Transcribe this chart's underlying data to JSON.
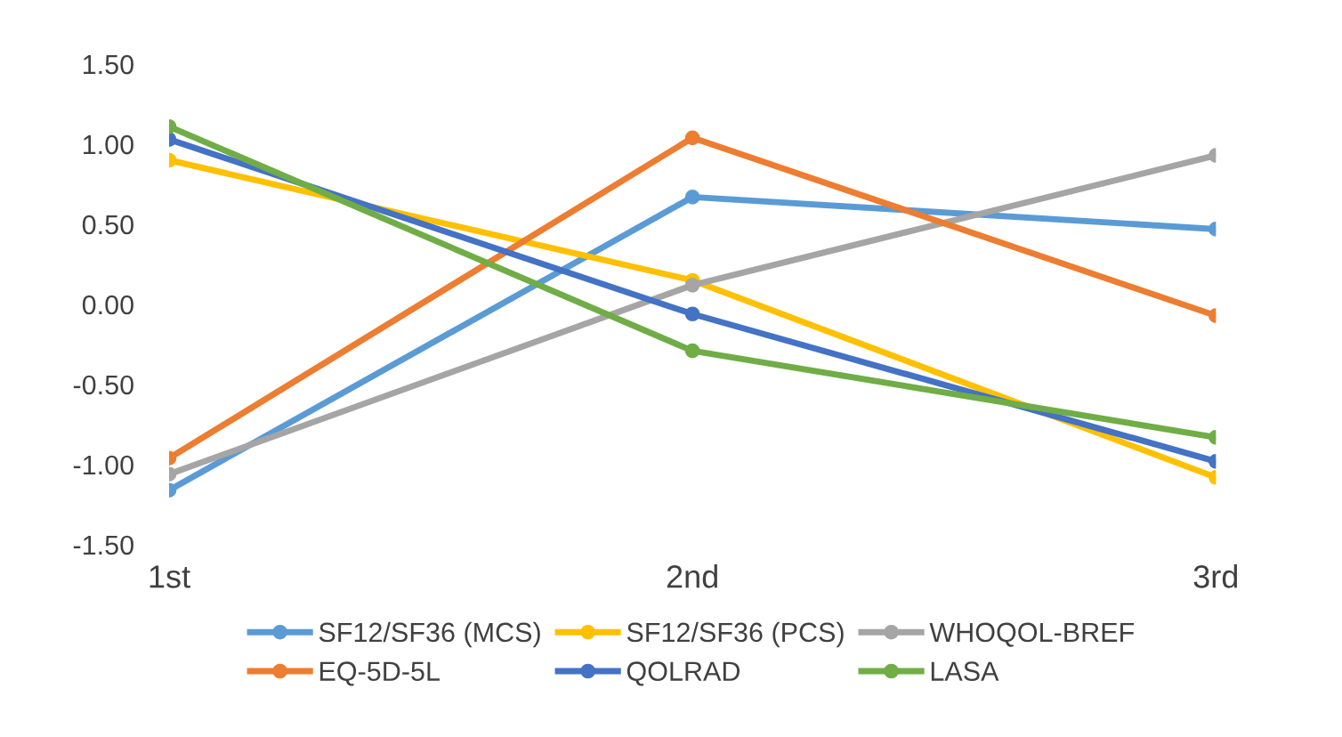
{
  "chart_data": {
    "type": "line",
    "categories": [
      "1st",
      "2nd",
      "3rd"
    ],
    "ylim": [
      -1.5,
      1.5
    ],
    "yticks": [
      {
        "value": -1.5,
        "label": "-1.50"
      },
      {
        "value": -1.0,
        "label": "-1.00"
      },
      {
        "value": -0.5,
        "label": "-0.50"
      },
      {
        "value": 0,
        "label": "0.00"
      },
      {
        "value": 0.5,
        "label": "0.50"
      },
      {
        "value": 1.0,
        "label": "1.00"
      },
      {
        "value": 1.5,
        "label": "1.50"
      }
    ],
    "grid": false,
    "legend": "bottom",
    "marker": "circle",
    "line_style": "solid",
    "series": [
      {
        "name": "SF12/SF36 (MCS)",
        "color": "#5b9bd5",
        "values": [
          -1.16,
          0.67,
          0.47
        ]
      },
      {
        "name": "SF12/SF36 (PCS)",
        "color": "#ffc000",
        "values": [
          0.9,
          0.15,
          -1.08
        ]
      },
      {
        "name": "WHOQOL-BREF",
        "color": "#a5a5a5",
        "values": [
          -1.06,
          0.12,
          0.93
        ]
      },
      {
        "name": "EQ-5D-5L",
        "color": "#ed7d31",
        "values": [
          -0.96,
          1.04,
          -0.07
        ]
      },
      {
        "name": "QOLRAD",
        "color": "#4472c4",
        "values": [
          1.03,
          -0.06,
          -0.98
        ]
      },
      {
        "name": "LASA",
        "color": "#70ad47",
        "values": [
          1.11,
          -0.29,
          -0.83
        ]
      }
    ]
  }
}
